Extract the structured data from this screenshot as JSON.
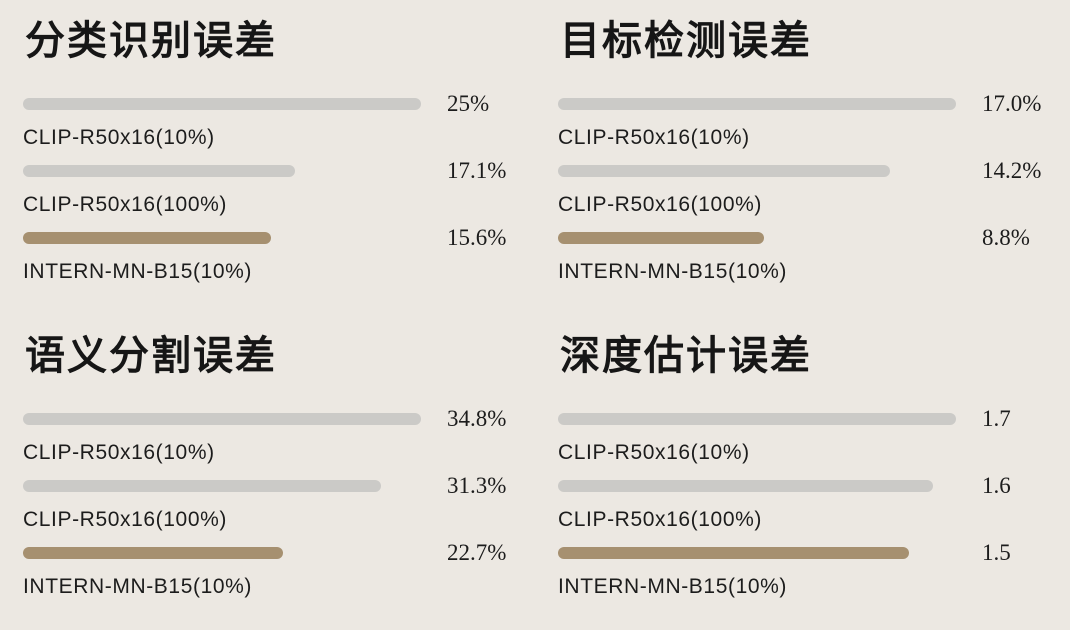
{
  "app": {
    "background_color": "#ECE8E2",
    "text_color": "#1C1C1C"
  },
  "colors": {
    "bar_gray": "#CBCAC7",
    "bar_brown": "#A69070"
  },
  "chart_data": {
    "type": "bar",
    "orientation": "horizontal",
    "layout": "2x2 grid of panels; each bar labeled below, value at right; bars scaled so the largest value fills the track; no axes or gridlines",
    "panels": [
      {
        "title": "分类识别误差",
        "unit": "%",
        "items": [
          {
            "label": "CLIP-R50x16(10%)",
            "value": 25,
            "value_display": "25%",
            "color": "gray"
          },
          {
            "label": "CLIP-R50x16(100%)",
            "value": 17.1,
            "value_display": "17.1%",
            "color": "gray"
          },
          {
            "label": "INTERN-MN-B15(10%)",
            "value": 15.6,
            "value_display": "15.6%",
            "color": "brown"
          }
        ]
      },
      {
        "title": "目标检测误差",
        "unit": "%",
        "items": [
          {
            "label": "CLIP-R50x16(10%)",
            "value": 17.0,
            "value_display": "17.0%",
            "color": "gray"
          },
          {
            "label": "CLIP-R50x16(100%)",
            "value": 14.2,
            "value_display": "14.2%",
            "color": "gray"
          },
          {
            "label": "INTERN-MN-B15(10%)",
            "value": 8.8,
            "value_display": "8.8%",
            "color": "brown"
          }
        ]
      },
      {
        "title": "语义分割误差",
        "unit": "%",
        "items": [
          {
            "label": "CLIP-R50x16(10%)",
            "value": 34.8,
            "value_display": "34.8%",
            "color": "gray"
          },
          {
            "label": "CLIP-R50x16(100%)",
            "value": 31.3,
            "value_display": "31.3%",
            "color": "gray"
          },
          {
            "label": "INTERN-MN-B15(10%)",
            "value": 22.7,
            "value_display": "22.7%",
            "color": "brown"
          }
        ]
      },
      {
        "title": "深度估计误差",
        "unit": "",
        "items": [
          {
            "label": "CLIP-R50x16(10%)",
            "value": 1.7,
            "value_display": "1.7",
            "color": "gray"
          },
          {
            "label": "CLIP-R50x16(100%)",
            "value": 1.6,
            "value_display": "1.6",
            "color": "gray"
          },
          {
            "label": "INTERN-MN-B15(10%)",
            "value": 1.5,
            "value_display": "1.5",
            "color": "brown"
          }
        ]
      }
    ]
  }
}
